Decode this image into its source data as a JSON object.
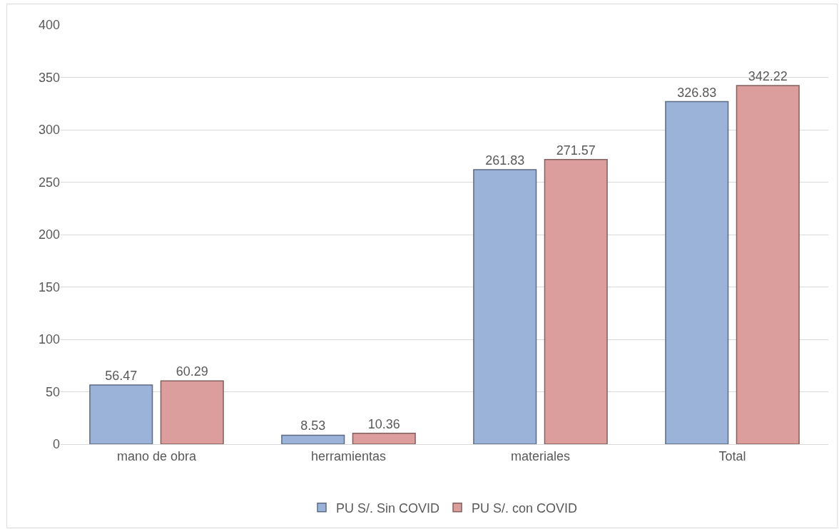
{
  "chart_data": {
    "type": "bar",
    "categories": [
      "mano de obra",
      "herramientas",
      "materiales",
      "Total"
    ],
    "series": [
      {
        "name": "PU S/. Sin COVID",
        "color": "#9bb3d9",
        "values": [
          56.47,
          8.53,
          261.83,
          326.83
        ]
      },
      {
        "name": "PU S/. con COVID",
        "color": "#dc9e9d",
        "values": [
          60.29,
          10.36,
          271.57,
          342.22
        ]
      }
    ],
    "ylim": [
      0,
      400
    ],
    "yticks": [
      0,
      50,
      100,
      150,
      200,
      250,
      300,
      350,
      400
    ],
    "grid": "y",
    "legend": "bottom",
    "data_labels": true
  }
}
